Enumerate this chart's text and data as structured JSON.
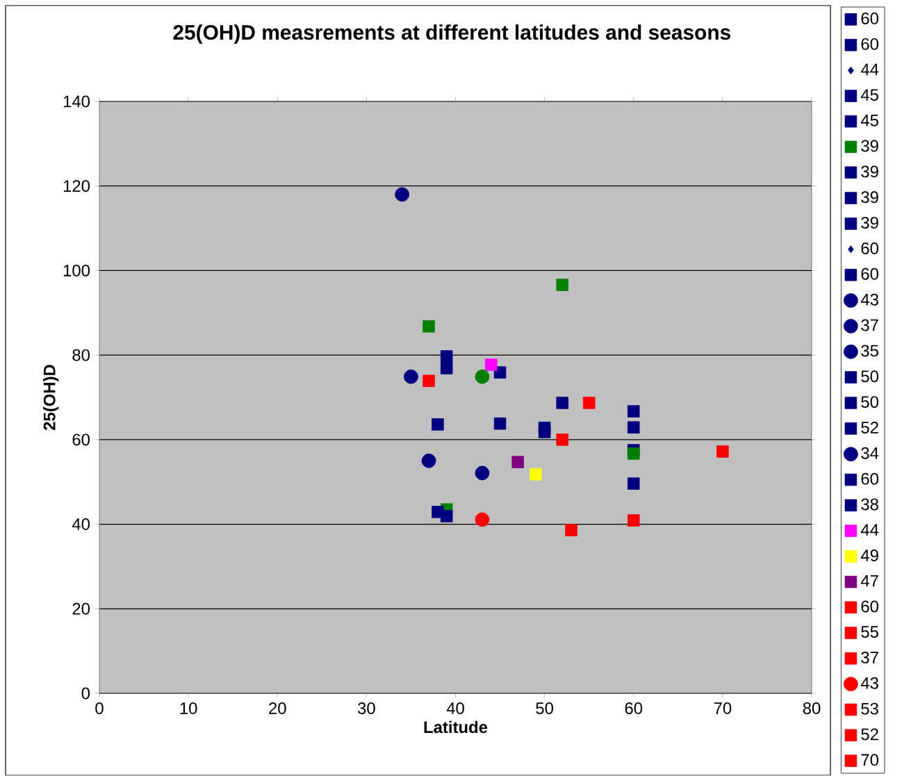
{
  "chart_data": {
    "type": "scatter",
    "title": "25(OH)D measrements at different latitudes and seasons",
    "xlabel": "Latitude",
    "ylabel": "25(OH)D",
    "xlim": [
      0,
      80
    ],
    "ylim": [
      0,
      140
    ],
    "xticks": [
      0,
      10,
      20,
      30,
      40,
      50,
      60,
      70,
      80
    ],
    "yticks": [
      0,
      20,
      40,
      60,
      80,
      100,
      120,
      140
    ],
    "grid": "y",
    "legend": "right",
    "series": [
      {
        "name": "60",
        "color": "#000080",
        "marker": "square",
        "x": [
          60
        ],
        "values": [
          66.7
        ]
      },
      {
        "name": "60",
        "color": "#000080",
        "marker": "square",
        "x": [
          60
        ],
        "values": [
          62.9
        ]
      },
      {
        "name": "44",
        "color": "#000080",
        "marker": "diamond",
        "values": [
          null
        ]
      },
      {
        "name": "45",
        "color": "#000080",
        "marker": "square",
        "x": [
          45
        ],
        "values": [
          75.9
        ]
      },
      {
        "name": "45",
        "color": "#000080",
        "marker": "square",
        "x": [
          45
        ],
        "values": [
          63.8
        ]
      },
      {
        "name": "39",
        "color": "#008000",
        "marker": "square",
        "x": [
          39
        ],
        "values": [
          43.5
        ]
      },
      {
        "name": "39",
        "color": "#000080",
        "marker": "square",
        "x": [
          39
        ],
        "values": [
          79.7
        ]
      },
      {
        "name": "39",
        "color": "#000080",
        "marker": "square",
        "x": [
          39
        ],
        "values": [
          76.9
        ]
      },
      {
        "name": "39",
        "color": "#000080",
        "marker": "square",
        "x": [
          39
        ],
        "values": [
          41.9
        ]
      },
      {
        "name": "60",
        "color": "#000080",
        "marker": "diamond",
        "values": [
          null
        ]
      },
      {
        "name": "60",
        "color": "#000080",
        "marker": "square",
        "x": [
          60
        ],
        "values": [
          57.5
        ]
      },
      {
        "name": "43",
        "color": "#000080",
        "marker": "circle",
        "x": [
          43
        ],
        "values": [
          52.1
        ]
      },
      {
        "name": "37",
        "color": "#000080",
        "marker": "circle",
        "x": [
          37
        ],
        "values": [
          55.0
        ]
      },
      {
        "name": "35",
        "color": "#000080",
        "marker": "circle",
        "x": [
          35
        ],
        "values": [
          74.9
        ]
      },
      {
        "name": "50",
        "color": "#000080",
        "marker": "square",
        "x": [
          50
        ],
        "values": [
          62.8
        ]
      },
      {
        "name": "50",
        "color": "#000080",
        "marker": "square",
        "x": [
          50
        ],
        "values": [
          61.8
        ]
      },
      {
        "name": "52",
        "color": "#000080",
        "marker": "square",
        "x": [
          52
        ],
        "values": [
          68.7
        ]
      },
      {
        "name": "34",
        "color": "#000080",
        "marker": "circle",
        "x": [
          34
        ],
        "values": [
          118.0
        ]
      },
      {
        "name": "60",
        "color": "#000080",
        "marker": "square",
        "x": [
          60
        ],
        "values": [
          49.6
        ]
      },
      {
        "name": "38",
        "color": "#000080",
        "marker": "square",
        "x": [
          38,
          38
        ],
        "values": [
          63.6,
          42.9
        ]
      },
      {
        "name": "44",
        "color": "#ff00ff",
        "marker": "square",
        "x": [
          44
        ],
        "values": [
          77.7
        ]
      },
      {
        "name": "49",
        "color": "#ffff00",
        "marker": "square",
        "x": [
          49
        ],
        "values": [
          51.8
        ]
      },
      {
        "name": "47",
        "color": "#800080",
        "marker": "square",
        "x": [
          47
        ],
        "values": [
          54.7
        ]
      },
      {
        "name": "60",
        "color": "#ff0000",
        "marker": "square",
        "x": [
          60
        ],
        "values": [
          40.9
        ]
      },
      {
        "name": "55",
        "color": "#ff0000",
        "marker": "square",
        "x": [
          55
        ],
        "values": [
          68.7
        ]
      },
      {
        "name": "37",
        "color": "#ff0000",
        "marker": "square",
        "x": [
          37
        ],
        "values": [
          73.9
        ]
      },
      {
        "name": "43",
        "color": "#ff0000",
        "marker": "circle",
        "x": [
          43
        ],
        "values": [
          41.1
        ]
      },
      {
        "name": "53",
        "color": "#ff0000",
        "marker": "square",
        "x": [
          53
        ],
        "values": [
          38.6
        ]
      },
      {
        "name": "52",
        "color": "#ff0000",
        "marker": "square",
        "x": [
          52
        ],
        "values": [
          60.0
        ]
      },
      {
        "name": "70",
        "color": "#ff0000",
        "marker": "square",
        "x": [
          70
        ],
        "values": [
          57.2
        ]
      },
      {
        "color": "#008000",
        "marker": "square",
        "x": [
          37
        ],
        "values": [
          86.8
        ]
      },
      {
        "color": "#008000",
        "marker": "circle",
        "x": [
          43
        ],
        "values": [
          74.9
        ]
      },
      {
        "color": "#008000",
        "marker": "square",
        "x": [
          52
        ],
        "values": [
          96.6
        ]
      },
      {
        "color": "#008000",
        "marker": "square",
        "x": [
          60
        ],
        "values": [
          56.7
        ]
      }
    ]
  }
}
